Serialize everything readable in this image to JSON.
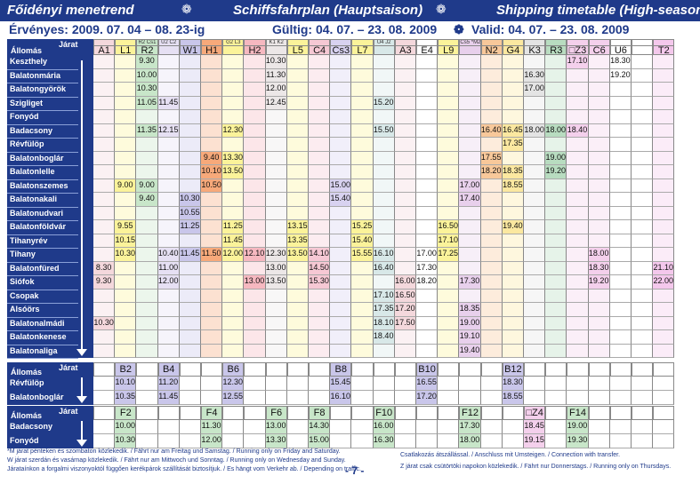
{
  "header": {
    "title_hu": "Főidényi menetrend",
    "title_de": "Schiffsfahrplan (Hauptsaison)",
    "title_en": "Shipping timetable (High-season)",
    "star": "❁",
    "valid_hu": "Érvényes: 2009. 07. 04 – 08. 23-ig",
    "valid_de": "Gültig: 04. 07. – 23. 08. 2009",
    "valid_en": "Valid: 04. 07. – 23. 08. 2009"
  },
  "labels": {
    "allomas": "Állomás",
    "jarat": "Járat"
  },
  "colors": {
    "navy": "#1f3a8a"
  },
  "main": {
    "stations": [
      "Keszthely",
      "Balatonmária",
      "Balatongyörök",
      "Szigliget",
      "Fonyód",
      "Badacsony",
      "Révfülöp",
      "Balatonboglár",
      "Balatonlelle",
      "Balatonszemes",
      "Balatonakali",
      "Balatonudvari",
      "Balatonföldvár",
      "Tihanyrév",
      "Tihany",
      "Balatonfüred",
      "Siófok",
      "Csopak",
      "Alsóörs",
      "Balatonalmádi",
      "Balatonkenese",
      "Balatonaliga"
    ],
    "columns": [
      {
        "code": "A1",
        "color": "#f4d8dc",
        "top": ""
      },
      {
        "code": "L1",
        "color": "#fbf39a",
        "top": ""
      },
      {
        "code": "R2",
        "color": "#c8e6c9",
        "top": "R2 Cs1"
      },
      {
        "code": "",
        "color": "#e6e0f3",
        "top": "U2 C2"
      },
      {
        "code": "W1",
        "color": "#c9c6ea",
        "top": ""
      },
      {
        "code": "H1",
        "color": "#f7a97a",
        "top": ""
      },
      {
        "code": "",
        "color": "#fbf39a",
        "top": "G2 L3"
      },
      {
        "code": "H2",
        "color": "#f6b8c0",
        "top": ""
      },
      {
        "code": "",
        "color": "#ece7e7",
        "top": "K1 K2"
      },
      {
        "code": "L5",
        "color": "#fbf39a",
        "top": ""
      },
      {
        "code": "C4",
        "color": "#f6c8d4",
        "top": ""
      },
      {
        "code": "Cs3",
        "color": "#d8d2f0",
        "top": ""
      },
      {
        "code": "L7",
        "color": "#fbf39a",
        "top": ""
      },
      {
        "code": "",
        "color": "#d8e8e8",
        "top": "U4 J2"
      },
      {
        "code": "A3",
        "color": "#f4d8dc",
        "top": ""
      },
      {
        "code": "E4",
        "color": "#ffffff",
        "top": ""
      },
      {
        "code": "L9",
        "color": "#fbf39a",
        "top": ""
      },
      {
        "code": "",
        "color": "#e8d0ec",
        "top": "Cs5 *M2"
      },
      {
        "code": "N2",
        "color": "#f8c89a",
        "top": ""
      },
      {
        "code": "G4",
        "color": "#fbe8a0",
        "top": ""
      },
      {
        "code": "K3",
        "color": "#e4e4e4",
        "top": ""
      },
      {
        "code": "R3",
        "color": "#b8dcc0",
        "top": ""
      },
      {
        "code": "□Z3",
        "color": "#f4d0ec",
        "top": ""
      },
      {
        "code": "C6",
        "color": "#f4d0ec",
        "top": ""
      },
      {
        "code": "U6",
        "color": "#ffffff",
        "top": ""
      },
      {
        "code": "",
        "color": "#ffffff",
        "top": ""
      },
      {
        "code": "T2",
        "color": "#f4c8ec",
        "top": ""
      }
    ],
    "times": [
      [
        [
          "2",
          "9.30"
        ],
        [
          "8",
          "10.30"
        ],
        [
          "22",
          "17.10"
        ],
        [
          "24",
          "18.30"
        ]
      ],
      [
        [
          "2",
          "10.00"
        ],
        [
          "8",
          "11.30"
        ],
        [
          "20",
          "16.30"
        ],
        [
          "24",
          "19.20"
        ]
      ],
      [
        [
          "2",
          "10.30"
        ],
        [
          "8",
          "12.00"
        ],
        [
          "20",
          "17.00"
        ]
      ],
      [
        [
          "2",
          "11.05"
        ],
        [
          "3",
          "11.45"
        ],
        [
          "8",
          "12.45"
        ],
        [
          "13",
          "15.20"
        ]
      ],
      [],
      [
        [
          "2",
          "11.35"
        ],
        [
          "3",
          "12.15"
        ],
        [
          "6",
          "12.30"
        ],
        [
          "13",
          "15.50"
        ],
        [
          "18",
          "16.40"
        ],
        [
          "19",
          "16.45"
        ],
        [
          "20",
          "18.00"
        ],
        [
          "21",
          "18.00"
        ],
        [
          "22",
          "18.40"
        ]
      ],
      [
        [
          "19",
          "17.35"
        ]
      ],
      [
        [
          "5",
          "9.40"
        ],
        [
          "6",
          "13.30"
        ],
        [
          "18",
          "17.55"
        ],
        [
          "21",
          "19.00"
        ]
      ],
      [
        [
          "5",
          "10.10"
        ],
        [
          "6",
          "13.50"
        ],
        [
          "18",
          "18.20"
        ],
        [
          "19",
          "18.35"
        ],
        [
          "21",
          "19.20"
        ]
      ],
      [
        [
          "1",
          "9.00"
        ],
        [
          "2",
          "9.00"
        ],
        [
          "5",
          "10.50"
        ],
        [
          "11",
          "15.00"
        ],
        [
          "17",
          "17.00"
        ],
        [
          "19",
          "18.55"
        ]
      ],
      [
        [
          "2",
          "9.40"
        ],
        [
          "4",
          "10.30"
        ],
        [
          "11",
          "15.40"
        ],
        [
          "17",
          "17.40"
        ]
      ],
      [
        [
          "4",
          "10.55"
        ]
      ],
      [
        [
          "1",
          "9.55"
        ],
        [
          "4",
          "11.25"
        ],
        [
          "6",
          "11.25"
        ],
        [
          "9",
          "13.15"
        ],
        [
          "12",
          "15.25"
        ],
        [
          "16",
          "16.50"
        ],
        [
          "19",
          "19.40"
        ]
      ],
      [
        [
          "1",
          "10.15"
        ],
        [
          "6",
          "11.45"
        ],
        [
          "9",
          "13.35"
        ],
        [
          "12",
          "15.40"
        ],
        [
          "16",
          "17.10"
        ]
      ],
      [
        [
          "1",
          "10.30"
        ],
        [
          "3",
          "10.40"
        ],
        [
          "4",
          "11.45"
        ],
        [
          "5",
          "11.50"
        ],
        [
          "6",
          "12.00"
        ],
        [
          "7",
          "12.10"
        ],
        [
          "8",
          "12.30"
        ],
        [
          "9",
          "13.50"
        ],
        [
          "10",
          "14.10"
        ],
        [
          "12",
          "15.55"
        ],
        [
          "13",
          "16.10"
        ],
        [
          "15",
          "17.00"
        ],
        [
          "16",
          "17.25"
        ],
        [
          "23",
          "18.00"
        ]
      ],
      [
        [
          "0",
          "8.30"
        ],
        [
          "3",
          "11.00"
        ],
        [
          "8",
          "13.00"
        ],
        [
          "10",
          "14.50"
        ],
        [
          "13",
          "16.40"
        ],
        [
          "15",
          "17.30"
        ],
        [
          "23",
          "18.30"
        ],
        [
          "26",
          "21.10"
        ]
      ],
      [
        [
          "0",
          "9.30"
        ],
        [
          "3",
          "12.00"
        ],
        [
          "7",
          "13.00"
        ],
        [
          "8",
          "13.50"
        ],
        [
          "10",
          "15.30"
        ],
        [
          "14",
          "16.00"
        ],
        [
          "15",
          "18.20"
        ],
        [
          "17",
          "17.30"
        ],
        [
          "23",
          "19.20"
        ],
        [
          "26",
          "22.00"
        ]
      ],
      [
        [
          "13",
          "17.10"
        ],
        [
          "14",
          "16.50"
        ]
      ],
      [
        [
          "13",
          "17.35"
        ],
        [
          "14",
          "17.20"
        ],
        [
          "17",
          "18.35"
        ]
      ],
      [
        [
          "0",
          "10.30"
        ],
        [
          "13",
          "18.10"
        ],
        [
          "14",
          "17.50"
        ],
        [
          "17",
          "19.00"
        ]
      ],
      [
        [
          "13",
          "18.40"
        ],
        [
          "17",
          "19.10"
        ]
      ],
      [
        [
          "17",
          "19.40"
        ]
      ]
    ]
  },
  "section2": {
    "columns": [
      {
        "code": "B2",
        "color": "#c9c6ea",
        "col": 1
      },
      {
        "code": "B4",
        "color": "#c9c6ea",
        "col": 3
      },
      {
        "code": "B6",
        "color": "#c9c6ea",
        "col": 6
      },
      {
        "code": "B8",
        "color": "#c9c6ea",
        "col": 11
      },
      {
        "code": "B10",
        "color": "#c9c6ea",
        "col": 15
      },
      {
        "code": "B12",
        "color": "#c9c6ea",
        "col": 19
      }
    ],
    "stations": [
      "Révfülöp",
      "Balatonboglár"
    ],
    "times": [
      [
        "10.10",
        "11.20",
        "12.30",
        "15.45",
        "16.55",
        "18.30"
      ],
      [
        "10.35",
        "11.45",
        "12.55",
        "16.10",
        "17.20",
        "18.55"
      ]
    ]
  },
  "section3": {
    "columns": [
      {
        "code": "F2",
        "color": "#c8e6c9",
        "col": 1
      },
      {
        "code": "F4",
        "color": "#c8e6c9",
        "col": 5
      },
      {
        "code": "F6",
        "color": "#c8e6c9",
        "col": 8
      },
      {
        "code": "F8",
        "color": "#c8e6c9",
        "col": 10
      },
      {
        "code": "F10",
        "color": "#c8e6c9",
        "col": 13
      },
      {
        "code": "F12",
        "color": "#c8e6c9",
        "col": 17
      },
      {
        "code": "□Z4",
        "color": "#f4d0ec",
        "col": 20
      },
      {
        "code": "F14",
        "color": "#c8e6c9",
        "col": 22
      }
    ],
    "stations": [
      "Badacsony",
      "Fonyód"
    ],
    "times": [
      [
        "10.00",
        "11.30",
        "13.00",
        "14.30",
        "16.00",
        "17.30",
        "18.45",
        "19.00"
      ],
      [
        "10.30",
        "12.00",
        "13.30",
        "15.00",
        "16.30",
        "18.00",
        "19.15",
        "19.30"
      ]
    ]
  },
  "footer": {
    "l1": "*M járat pénteken és szombaton közlekedik. / Fährt nur am Freitag und Samstag. / Running only on Friday and Saturday.",
    "l2": "W járat szerdán és vasárnap közlekedik. / Fährt nur am Mittwoch und Sonntag. / Running only on Wednesday and Sunday.",
    "l3": "Járataínkon a forgalmi viszonyoktól függően kerékpárok szállítását biztosítjuk. / Es hängt vom Verkehr ab. / Depending on traffic.",
    "r1": "Csatlakozás átszállással. / Anschluss mit Umsteigen. / Connection with transfer.",
    "r2": "Z járat csak csütörtöki napokon közlekedik. / Fährt nur Donnerstags. / Running only on Thursdays.",
    "page": "- 7 -"
  }
}
